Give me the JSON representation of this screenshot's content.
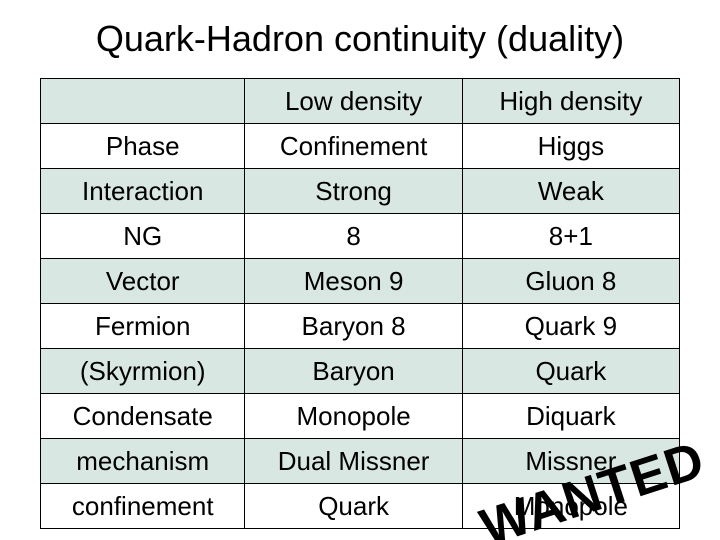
{
  "title": "Quark-Hadron continuity (duality)",
  "table": {
    "columns": [
      "",
      "Low density",
      "High density"
    ],
    "rows": [
      [
        "",
        "Low density",
        "High density"
      ],
      [
        "Phase",
        "Confinement",
        "Higgs"
      ],
      [
        "Interaction",
        "Strong",
        "Weak"
      ],
      [
        "NG",
        "8",
        "8+1"
      ],
      [
        "Vector",
        "Meson 9",
        "Gluon 8"
      ],
      [
        "Fermion",
        "Baryon 8",
        "Quark 9"
      ],
      [
        "(Skyrmion)",
        "Baryon",
        "Quark"
      ],
      [
        "Condensate",
        "Monopole",
        "Diquark"
      ],
      [
        "mechanism",
        "Dual Missner",
        "Missner"
      ],
      [
        "confinement",
        "Quark",
        "Monopole"
      ]
    ],
    "alt_row_background": "#d9e7e3",
    "plain_row_background": "#ffffff",
    "border_color": "#000000",
    "font_size": 26
  },
  "stamp": {
    "text": "WANTED",
    "font_size": 52,
    "rotation_deg": -18,
    "color": "#000000"
  },
  "background_color": "#ffffff",
  "title_fontsize": 36
}
